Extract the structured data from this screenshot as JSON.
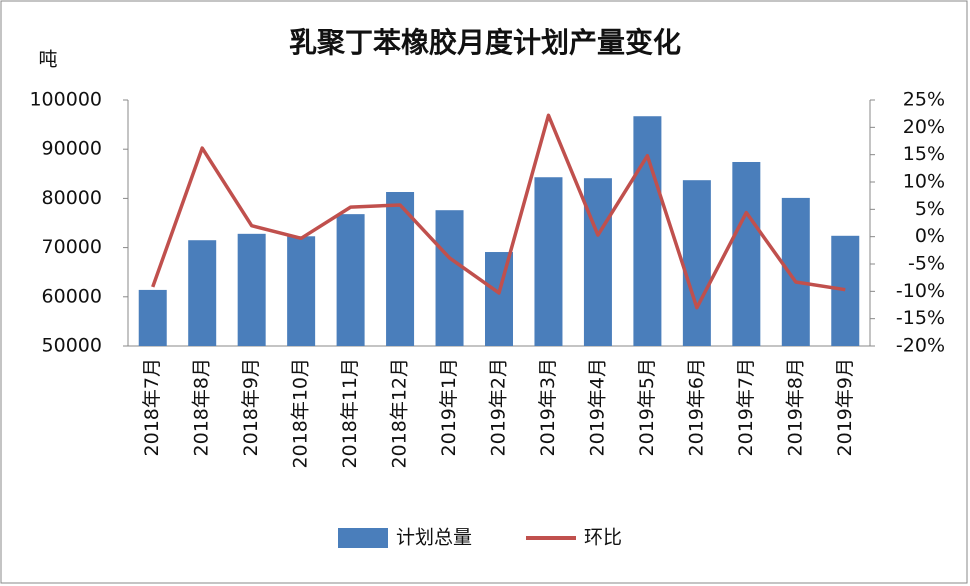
{
  "chart_data": {
    "type": "bar",
    "title": "乳聚丁苯橡胶月度计划产量变化",
    "y_label": "吨",
    "categories": [
      "2018年7月",
      "2018年8月",
      "2018年9月",
      "2018年10月",
      "2018年11月",
      "2018年12月",
      "2019年1月",
      "2019年2月",
      "2019年3月",
      "2019年4月",
      "2019年5月",
      "2019年6月",
      "2019年7月",
      "2019年8月",
      "2019年9月"
    ],
    "series": [
      {
        "name": "计划总量",
        "type": "bar",
        "color": "#4a7ebb",
        "values": [
          61400,
          71500,
          72800,
          72300,
          76800,
          81300,
          77600,
          69100,
          84300,
          84100,
          96700,
          83700,
          87400,
          80100,
          72400
        ]
      },
      {
        "name": "环比",
        "type": "line",
        "axis": "y2",
        "color": "#c0504d",
        "values": [
          -9.2,
          16.2,
          2,
          -0.3,
          5.4,
          5.8,
          -3.9,
          -10.3,
          22.2,
          0.3,
          14.8,
          -13,
          4.4,
          -8.3,
          -9.7
        ]
      }
    ],
    "ylim": [
      50000,
      100000
    ],
    "yticks": [
      50000,
      60000,
      70000,
      80000,
      90000,
      100000
    ],
    "y2lim": [
      -20,
      25
    ],
    "y2ticks": [
      {
        "value": -20,
        "label": "-20%"
      },
      {
        "value": -15,
        "label": "-15%"
      },
      {
        "value": -10,
        "label": "-10%"
      },
      {
        "value": -5,
        "label": "-5%"
      },
      {
        "value": 0,
        "label": "0%"
      },
      {
        "value": 5,
        "label": "5%"
      },
      {
        "value": 10,
        "label": "10%"
      },
      {
        "value": 15,
        "label": "15%"
      },
      {
        "value": 20,
        "label": "20%"
      },
      {
        "value": 25,
        "label": "25%"
      }
    ],
    "legend": "bottom"
  }
}
